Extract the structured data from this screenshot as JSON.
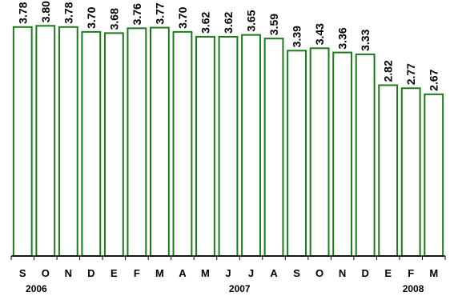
{
  "chart_data": {
    "type": "bar",
    "categories": [
      "S",
      "O",
      "N",
      "D",
      "E",
      "F",
      "M",
      "A",
      "M",
      "J",
      "J",
      "A",
      "S",
      "O",
      "N",
      "D",
      "E",
      "F",
      "M"
    ],
    "values": [
      3.78,
      3.8,
      3.78,
      3.7,
      3.68,
      3.76,
      3.77,
      3.7,
      3.62,
      3.62,
      3.65,
      3.59,
      3.39,
      3.43,
      3.36,
      3.33,
      2.82,
      2.77,
      2.67
    ],
    "value_labels": [
      "3.78",
      "3.80",
      "3.78",
      "3.70",
      "3.68",
      "3.76",
      "3.77",
      "3.70",
      "3.62",
      "3.62",
      "3.65",
      "3.59",
      "3.39",
      "3.43",
      "3.36",
      "3.33",
      "2.82",
      "2.77",
      "2.67"
    ],
    "year_groups": [
      {
        "label": "2006",
        "start": 0,
        "end": 3
      },
      {
        "label": "2007",
        "start": 4,
        "end": 15
      },
      {
        "label": "2008",
        "start": 16,
        "end": 18
      }
    ],
    "ylim": [
      0,
      4.2
    ],
    "grid": false,
    "colors": {
      "bar_stroke": "#1a7a1a",
      "bar_fill": "#ffffff"
    }
  }
}
